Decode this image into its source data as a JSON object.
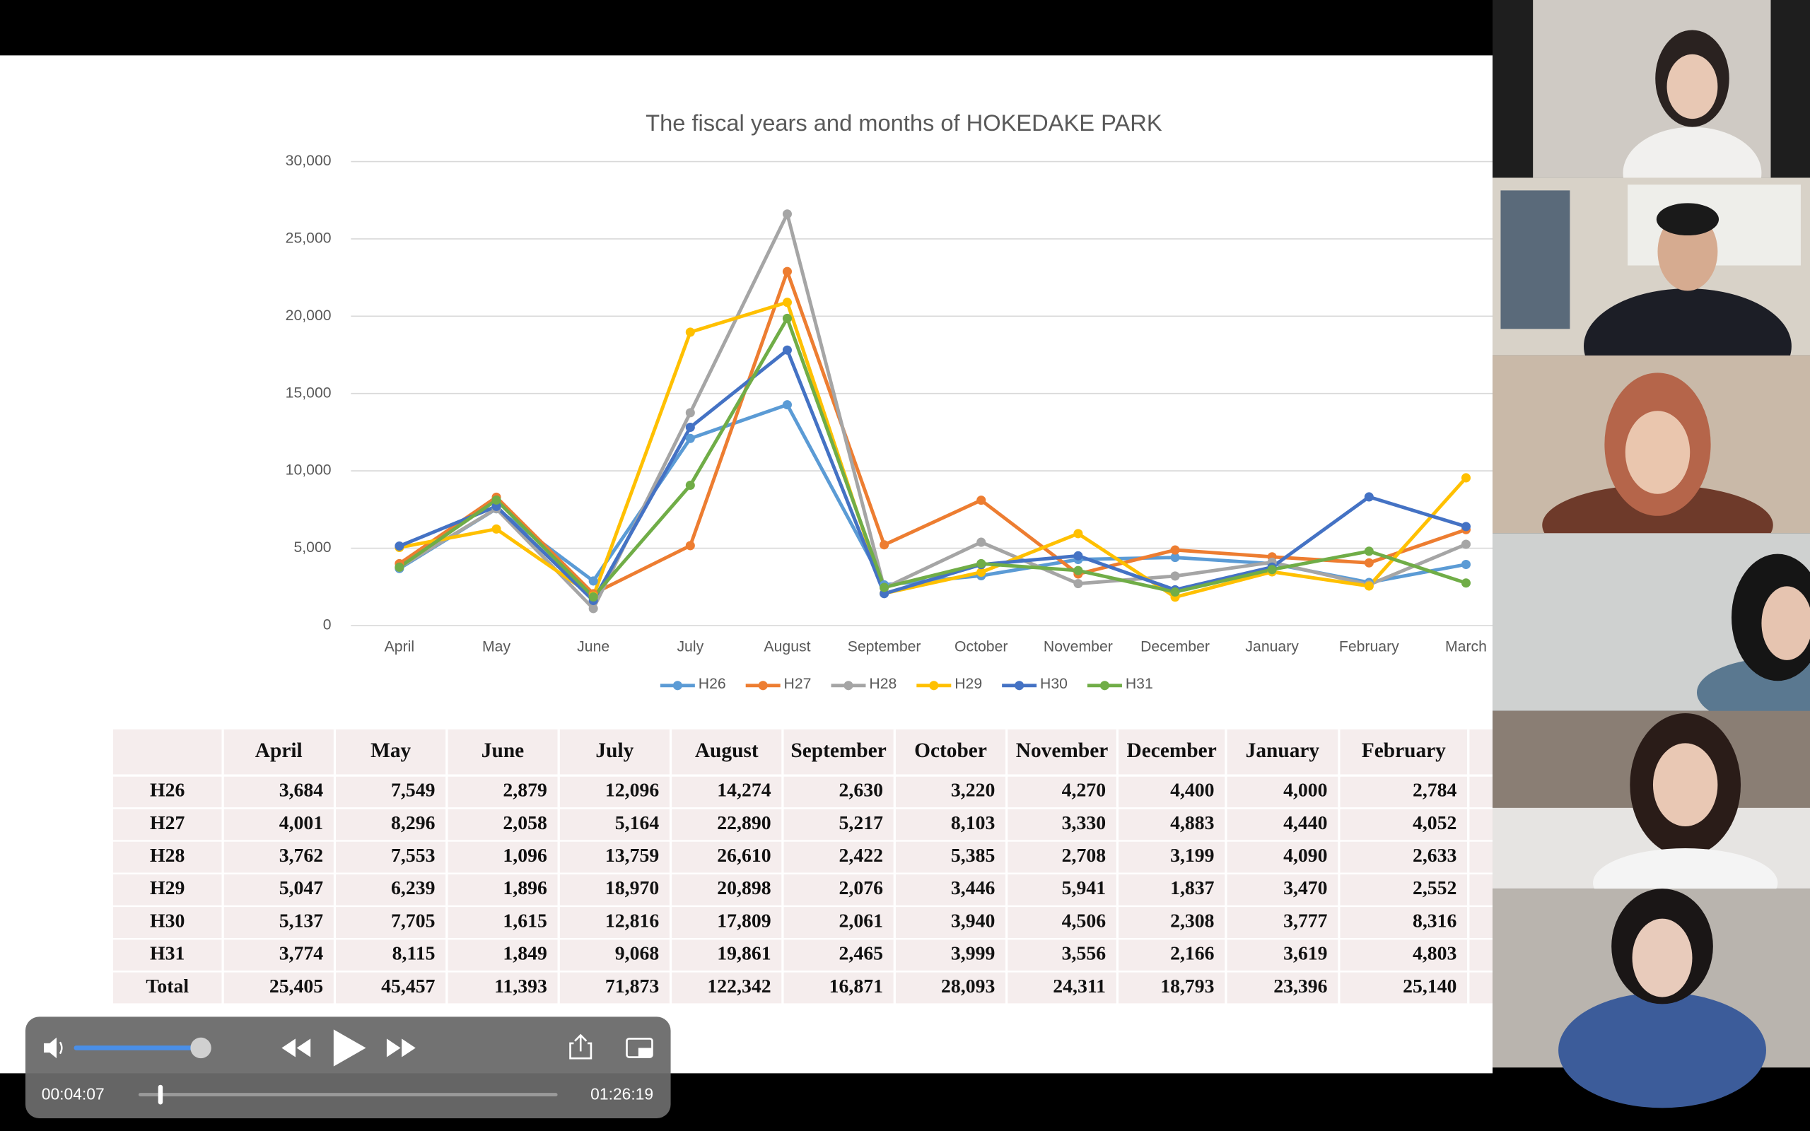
{
  "chart_data": {
    "type": "line",
    "title": "The fiscal years and months of HOKEDAKE PARK",
    "categories": [
      "April",
      "May",
      "June",
      "July",
      "August",
      "September",
      "October",
      "November",
      "December",
      "January",
      "February",
      "March"
    ],
    "series": [
      {
        "name": "H26",
        "color": "#5b9bd5",
        "values": [
          3684,
          7549,
          2879,
          12096,
          14274,
          2630,
          3220,
          4270,
          4400,
          4000,
          2784,
          3950
        ]
      },
      {
        "name": "H27",
        "color": "#ed7d31",
        "values": [
          4001,
          8296,
          2058,
          5164,
          22890,
          5217,
          8103,
          3330,
          4883,
          4440,
          4052,
          6200
        ]
      },
      {
        "name": "H28",
        "color": "#a5a5a5",
        "values": [
          3762,
          7553,
          1096,
          13759,
          26610,
          2422,
          5385,
          2708,
          3199,
          4090,
          2633,
          5250
        ]
      },
      {
        "name": "H29",
        "color": "#ffc000",
        "values": [
          5047,
          6239,
          1896,
          18970,
          20898,
          2076,
          3446,
          5941,
          1837,
          3470,
          2552,
          9550
        ]
      },
      {
        "name": "H30",
        "color": "#4472c4",
        "values": [
          5137,
          7705,
          1615,
          12816,
          17809,
          2061,
          3940,
          4506,
          2308,
          3777,
          8316,
          6400
        ]
      },
      {
        "name": "H31",
        "color": "#70ad47",
        "values": [
          3774,
          8115,
          1849,
          9068,
          19861,
          2465,
          3999,
          3556,
          2166,
          3619,
          4803,
          2750
        ]
      }
    ],
    "ylim": [
      0,
      30000
    ],
    "yticks": [
      0,
      {
        "value": 5000,
        "label": "5,000"
      },
      {
        "value": 10000,
        "label": "10,000"
      },
      {
        "value": 15000,
        "label": "15,000"
      },
      {
        "value": 20000,
        "label": "20,000"
      },
      {
        "value": 25000,
        "label": "25,000"
      },
      {
        "value": 30000,
        "label": "30,000"
      }
    ],
    "grid": true,
    "legend": "bottom"
  },
  "table": {
    "columns": [
      "April",
      "May",
      "June",
      "July",
      "August",
      "September",
      "October",
      "November",
      "December",
      "January",
      "February"
    ],
    "rows": [
      {
        "label": "H26",
        "cells": [
          "3,684",
          "7,549",
          "2,879",
          "12,096",
          "14,274",
          "2,630",
          "3,220",
          "4,270",
          "4,400",
          "4,000",
          "2,784"
        ]
      },
      {
        "label": "H27",
        "cells": [
          "4,001",
          "8,296",
          "2,058",
          "5,164",
          "22,890",
          "5,217",
          "8,103",
          "3,330",
          "4,883",
          "4,440",
          "4,052"
        ]
      },
      {
        "label": "H28",
        "cells": [
          "3,762",
          "7,553",
          "1,096",
          "13,759",
          "26,610",
          "2,422",
          "5,385",
          "2,708",
          "3,199",
          "4,090",
          "2,633"
        ]
      },
      {
        "label": "H29",
        "cells": [
          "5,047",
          "6,239",
          "1,896",
          "18,970",
          "20,898",
          "2,076",
          "3,446",
          "5,941",
          "1,837",
          "3,470",
          "2,552"
        ]
      },
      {
        "label": "H30",
        "cells": [
          "5,137",
          "7,705",
          "1,615",
          "12,816",
          "17,809",
          "2,061",
          "3,940",
          "4,506",
          "2,308",
          "3,777",
          "8,316"
        ]
      },
      {
        "label": "H31",
        "cells": [
          "3,774",
          "8,115",
          "1,849",
          "9,068",
          "19,861",
          "2,465",
          "3,999",
          "3,556",
          "2,166",
          "3,619",
          "4,803"
        ]
      },
      {
        "label": "Total",
        "cells": [
          "25,405",
          "45,457",
          "11,393",
          "71,873",
          "122,342",
          "16,871",
          "28,093",
          "24,311",
          "18,793",
          "23,396",
          "25,140"
        ]
      }
    ]
  },
  "player": {
    "elapsed": "00:04:07",
    "duration": "01:26:19"
  }
}
